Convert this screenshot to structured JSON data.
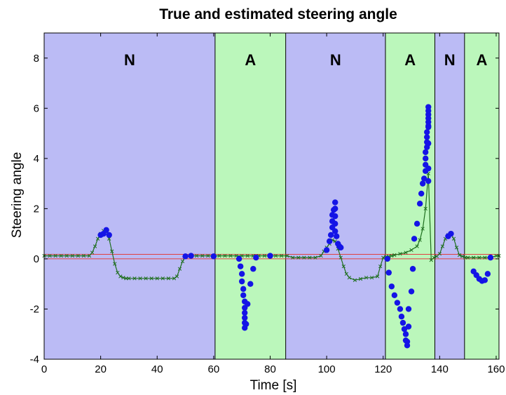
{
  "chart_data": {
    "type": "line",
    "title": "True and estimated steering angle",
    "xlabel": "Time [s]",
    "ylabel": "Steering angle",
    "xlim": [
      0,
      161
    ],
    "ylim": [
      -4,
      9
    ],
    "xticks": [
      0,
      20,
      40,
      60,
      80,
      100,
      120,
      140,
      160
    ],
    "yticks": [
      -4,
      -2,
      0,
      2,
      4,
      6,
      8
    ],
    "grid": false,
    "colors": {
      "region_N": "#bbbbf5",
      "region_A": "#bbf7bb",
      "true_line": "#1e6e1e",
      "true_marker": "#1e6e1e",
      "estimate_dots": "#1414e6",
      "threshold_lines": "#e04040"
    },
    "regions": [
      {
        "label": "N",
        "x0": 0,
        "x1": 60.5
      },
      {
        "label": "A",
        "x0": 60.5,
        "x1": 85.5
      },
      {
        "label": "N",
        "x0": 85.5,
        "x1": 120.8
      },
      {
        "label": "A",
        "x0": 120.8,
        "x1": 138.3
      },
      {
        "label": "N",
        "x0": 138.3,
        "x1": 148.8
      },
      {
        "label": "A",
        "x0": 148.8,
        "x1": 161
      }
    ],
    "thresholds": [
      0.18,
      0.0
    ],
    "true_series": {
      "x": [
        0,
        2,
        4,
        6,
        8,
        10,
        12,
        14,
        16,
        17,
        18,
        19,
        20,
        21,
        22,
        23,
        24,
        25,
        26,
        27,
        28,
        29,
        30,
        32,
        34,
        36,
        38,
        40,
        42,
        44,
        46,
        47,
        48,
        49,
        50,
        52,
        54,
        56,
        58,
        60,
        62,
        64,
        66,
        68,
        70,
        72,
        74,
        76,
        78,
        80,
        82,
        84,
        86,
        88,
        90,
        92,
        94,
        96,
        98,
        99,
        100,
        101,
        102,
        103,
        104,
        105,
        106,
        107,
        108,
        110,
        112,
        114,
        116,
        118,
        119,
        120,
        121,
        122,
        123,
        124,
        126,
        128,
        130,
        132,
        133,
        134,
        135,
        136,
        137,
        138,
        139,
        140,
        141,
        142,
        143,
        144,
        145,
        146,
        147,
        148,
        149,
        150,
        152,
        154,
        156,
        158,
        160,
        161
      ],
      "y": [
        0.12,
        0.12,
        0.12,
        0.12,
        0.12,
        0.12,
        0.12,
        0.12,
        0.12,
        0.25,
        0.5,
        0.8,
        1.0,
        1.12,
        1.12,
        0.8,
        0.3,
        -0.2,
        -0.55,
        -0.7,
        -0.75,
        -0.78,
        -0.78,
        -0.78,
        -0.78,
        -0.78,
        -0.78,
        -0.78,
        -0.78,
        -0.78,
        -0.78,
        -0.7,
        -0.4,
        -0.1,
        0.1,
        0.12,
        0.12,
        0.12,
        0.12,
        0.12,
        0.12,
        0.12,
        0.12,
        0.12,
        0.12,
        0.12,
        0.12,
        0.12,
        0.12,
        0.12,
        0.12,
        0.12,
        0.12,
        0.05,
        0.05,
        0.05,
        0.05,
        0.05,
        0.12,
        0.3,
        0.45,
        0.6,
        0.75,
        0.7,
        0.4,
        0.05,
        -0.3,
        -0.6,
        -0.75,
        -0.85,
        -0.8,
        -0.75,
        -0.75,
        -0.7,
        -0.3,
        0.05,
        0.08,
        0.1,
        0.12,
        0.15,
        0.2,
        0.25,
        0.35,
        0.5,
        0.75,
        1.2,
        2.0,
        3.4,
        -0.05,
        0.05,
        0.1,
        0.2,
        0.5,
        0.8,
        0.95,
        1.0,
        0.8,
        0.45,
        0.15,
        0.1,
        0.05,
        0.05,
        0.05,
        0.05,
        0.05,
        0.05,
        0.12,
        0.12
      ]
    },
    "estimate_series": {
      "x": [
        20,
        21,
        22,
        23,
        50,
        52,
        60,
        69,
        69.5,
        70,
        70,
        70.5,
        70.5,
        71,
        71,
        71,
        71,
        71,
        71,
        71.5,
        72,
        73,
        74,
        75,
        80,
        100,
        101,
        101.5,
        102,
        102,
        102,
        102.5,
        103,
        103,
        103,
        103,
        103,
        103.5,
        104,
        104.5,
        105,
        121.5,
        122,
        123,
        124,
        125,
        126,
        126.5,
        127,
        127.5,
        128,
        128,
        128.5,
        128.5,
        129,
        129,
        130,
        130.5,
        131,
        132,
        133,
        133.5,
        134,
        134.5,
        135,
        135,
        135,
        135,
        135.5,
        135.5,
        135.5,
        135.5,
        136,
        136,
        136,
        136,
        136,
        136,
        136,
        136,
        136,
        136,
        143,
        144,
        152,
        153,
        154,
        155,
        156,
        157,
        158
      ],
      "y": [
        0.95,
        1.0,
        1.15,
        0.95,
        0.1,
        0.12,
        0.1,
        0.0,
        -0.3,
        -0.6,
        -0.9,
        -1.2,
        -1.45,
        -1.7,
        -1.95,
        -2.15,
        -2.35,
        -2.55,
        -2.75,
        -2.6,
        -1.8,
        -1.0,
        -0.4,
        0.05,
        0.12,
        0.35,
        0.7,
        0.95,
        1.25,
        1.5,
        1.75,
        1.95,
        2.25,
        2.0,
        1.7,
        1.4,
        1.1,
        0.9,
        0.6,
        0.5,
        0.45,
        0.0,
        -0.55,
        -1.1,
        -1.45,
        -1.75,
        -2.0,
        -2.3,
        -2.55,
        -2.8,
        -3.0,
        -3.25,
        -3.45,
        -3.3,
        -2.7,
        -2.0,
        -1.3,
        -0.4,
        0.8,
        1.4,
        2.2,
        2.6,
        3.0,
        3.2,
        3.5,
        3.75,
        4.0,
        4.25,
        4.45,
        4.65,
        4.85,
        5.05,
        5.25,
        5.45,
        5.6,
        5.75,
        5.9,
        6.05,
        5.3,
        4.6,
        3.6,
        3.1,
        0.9,
        1.0,
        -0.5,
        -0.65,
        -0.8,
        -0.88,
        -0.85,
        -0.6,
        0.05
      ]
    }
  }
}
